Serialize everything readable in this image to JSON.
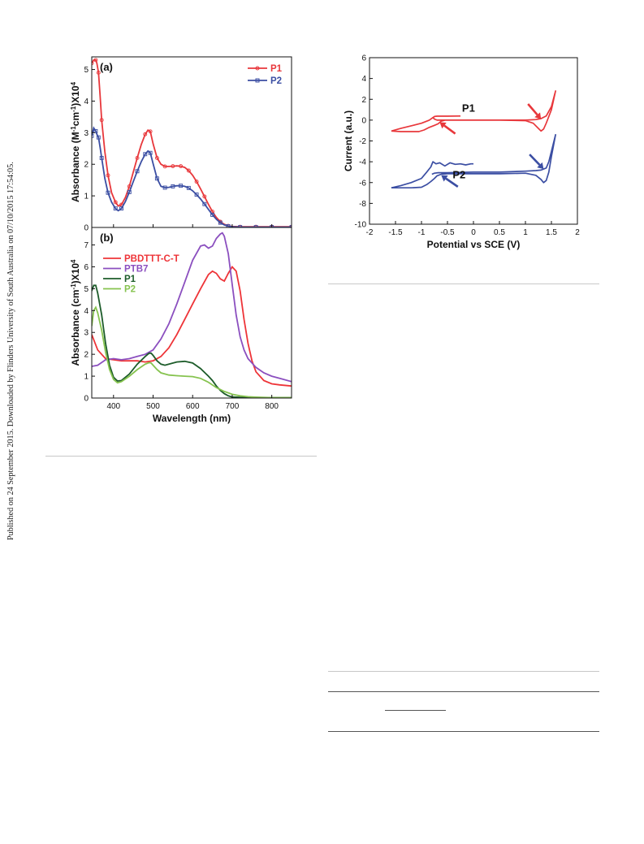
{
  "side_note": {
    "text": "Published on 24 September 2015. Downloaded by Flinders University of South Australia on 07/10/2015 17:54:05."
  },
  "colors": {
    "P1_red": "#e8373b",
    "P2_blue": "#3b4ea3",
    "PBDTTT_red": "#ee3438",
    "PTB7_purple": "#8b4fbf",
    "P1_green": "#1d5c2a",
    "P2_lightgreen": "#86c34f",
    "frame": "#111111",
    "rule": "#c8c8c8"
  },
  "chart_data": [
    {
      "id": "panel_a",
      "type": "line",
      "tag": "(a)",
      "xlabel": "",
      "ylabel": "Absorbance (M^-1cm^-1)X10^4",
      "xlim": [
        345,
        850
      ],
      "ylim": [
        0,
        5.4
      ],
      "xticks": [
        400,
        500,
        600,
        700,
        800
      ],
      "show_xtick_labels": false,
      "yticks": [
        0,
        1,
        2,
        3,
        4,
        5
      ],
      "grid": false,
      "legend_position": "top-right",
      "series": [
        {
          "name": "P1",
          "color_key": "P1_red",
          "marker": "circle",
          "x": [
            345,
            350,
            355,
            358,
            362,
            366,
            370,
            378,
            386,
            395,
            405,
            412,
            420,
            430,
            440,
            450,
            460,
            470,
            480,
            487,
            493,
            500,
            510,
            520,
            530,
            540,
            550,
            560,
            570,
            580,
            590,
            600,
            610,
            620,
            630,
            640,
            650,
            660,
            670,
            680,
            690,
            700,
            720,
            740,
            760,
            780,
            800,
            820,
            850
          ],
          "y": [
            5.2,
            5.3,
            5.3,
            5.2,
            4.9,
            4.2,
            3.4,
            2.4,
            1.65,
            1.1,
            0.8,
            0.68,
            0.72,
            0.95,
            1.3,
            1.75,
            2.2,
            2.62,
            2.95,
            3.08,
            3.04,
            2.65,
            2.2,
            2.0,
            1.93,
            1.93,
            1.94,
            1.95,
            1.94,
            1.9,
            1.8,
            1.65,
            1.45,
            1.22,
            0.98,
            0.73,
            0.5,
            0.32,
            0.18,
            0.1,
            0.05,
            0.03,
            0.02,
            0.02,
            0.02,
            0.02,
            0.02,
            0.02,
            0.02
          ]
        },
        {
          "name": "P2",
          "color_key": "P2_blue",
          "marker": "square",
          "x": [
            345,
            350,
            355,
            358,
            362,
            366,
            370,
            378,
            386,
            395,
            405,
            412,
            420,
            430,
            440,
            450,
            460,
            470,
            480,
            487,
            493,
            500,
            510,
            520,
            530,
            540,
            550,
            560,
            570,
            580,
            590,
            600,
            610,
            620,
            630,
            640,
            650,
            660,
            670,
            680,
            690,
            700,
            720,
            740,
            760,
            780,
            800,
            820,
            850
          ],
          "y": [
            2.9,
            3.15,
            3.05,
            2.95,
            2.85,
            2.55,
            2.2,
            1.55,
            1.1,
            0.8,
            0.6,
            0.53,
            0.6,
            0.82,
            1.12,
            1.45,
            1.78,
            2.08,
            2.32,
            2.42,
            2.36,
            2.02,
            1.55,
            1.3,
            1.26,
            1.27,
            1.3,
            1.32,
            1.32,
            1.3,
            1.25,
            1.16,
            1.04,
            0.9,
            0.74,
            0.57,
            0.4,
            0.26,
            0.15,
            0.08,
            0.04,
            0.02,
            0.01,
            0.01,
            0.01,
            0.01,
            0.01,
            0.01,
            0.01
          ]
        }
      ]
    },
    {
      "id": "panel_b",
      "type": "line",
      "tag": "(b)",
      "xlabel": "Wavelength (nm)",
      "ylabel": "Absorbance (cm^-1)X10^4",
      "xlim": [
        345,
        850
      ],
      "ylim": [
        0,
        7.8
      ],
      "xticks": [
        400,
        500,
        600,
        700,
        800
      ],
      "show_xtick_labels": true,
      "yticks": [
        0,
        1,
        2,
        3,
        4,
        5,
        6,
        7
      ],
      "grid": false,
      "legend_position": "top-left",
      "series": [
        {
          "name": "PBDTTT-C-T",
          "color_key": "PBDTTT_red",
          "x": [
            345,
            360,
            380,
            400,
            420,
            440,
            460,
            480,
            500,
            520,
            540,
            560,
            580,
            600,
            620,
            640,
            650,
            660,
            670,
            680,
            690,
            700,
            710,
            720,
            730,
            740,
            750,
            760,
            780,
            800,
            820,
            850
          ],
          "y": [
            2.9,
            2.2,
            1.8,
            1.75,
            1.7,
            1.7,
            1.7,
            1.65,
            1.7,
            1.9,
            2.3,
            2.9,
            3.6,
            4.3,
            5.0,
            5.65,
            5.8,
            5.7,
            5.45,
            5.35,
            5.7,
            6.0,
            5.8,
            4.9,
            3.6,
            2.5,
            1.7,
            1.2,
            0.8,
            0.65,
            0.6,
            0.55
          ]
        },
        {
          "name": "PTB7",
          "color_key": "PTB7_purple",
          "x": [
            345,
            360,
            380,
            400,
            420,
            440,
            460,
            480,
            500,
            520,
            540,
            560,
            580,
            600,
            620,
            630,
            640,
            650,
            660,
            670,
            675,
            680,
            690,
            700,
            710,
            720,
            730,
            740,
            760,
            780,
            800,
            820,
            850
          ],
          "y": [
            1.45,
            1.5,
            1.75,
            1.8,
            1.75,
            1.8,
            1.9,
            2.0,
            2.2,
            2.7,
            3.4,
            4.3,
            5.3,
            6.3,
            6.95,
            7.0,
            6.85,
            6.95,
            7.3,
            7.5,
            7.55,
            7.4,
            6.6,
            5.2,
            3.8,
            2.8,
            2.2,
            1.8,
            1.4,
            1.15,
            1.0,
            0.9,
            0.75
          ]
        },
        {
          "name": "P1",
          "color_key": "P1_green",
          "x": [
            345,
            350,
            355,
            360,
            370,
            380,
            390,
            400,
            410,
            420,
            440,
            460,
            480,
            490,
            495,
            500,
            510,
            520,
            530,
            540,
            560,
            580,
            600,
            620,
            640,
            650,
            660,
            670,
            680,
            690,
            700,
            720,
            740,
            760,
            800,
            850
          ],
          "y": [
            4.9,
            5.15,
            5.15,
            4.8,
            3.8,
            2.5,
            1.5,
            0.95,
            0.78,
            0.8,
            1.1,
            1.55,
            1.9,
            2.05,
            2.05,
            1.95,
            1.7,
            1.55,
            1.5,
            1.55,
            1.65,
            1.68,
            1.6,
            1.35,
            1.0,
            0.8,
            0.55,
            0.35,
            0.2,
            0.1,
            0.05,
            0.03,
            0.02,
            0.02,
            0.02,
            0.02
          ]
        },
        {
          "name": "P2",
          "color_key": "P2_lightgreen",
          "x": [
            345,
            350,
            355,
            360,
            370,
            380,
            390,
            400,
            410,
            420,
            440,
            460,
            480,
            490,
            495,
            500,
            510,
            520,
            540,
            560,
            580,
            600,
            620,
            640,
            660,
            680,
            700,
            720,
            740,
            760,
            800,
            850
          ],
          "y": [
            3.3,
            4.0,
            4.15,
            3.9,
            3.1,
            2.1,
            1.3,
            0.85,
            0.7,
            0.75,
            1.0,
            1.3,
            1.55,
            1.62,
            1.6,
            1.5,
            1.3,
            1.15,
            1.05,
            1.02,
            1.0,
            0.98,
            0.9,
            0.72,
            0.48,
            0.3,
            0.17,
            0.1,
            0.06,
            0.04,
            0.02,
            0.02
          ]
        }
      ]
    },
    {
      "id": "panel_cv",
      "type": "line",
      "tag": "",
      "xlabel": "Potential vs SCE (V)",
      "ylabel": "Current (a.u.)",
      "xlim": [
        -2,
        2
      ],
      "ylim": [
        -10,
        6
      ],
      "xticks": [
        -2,
        -1.5,
        -1,
        -0.5,
        0,
        0.5,
        1,
        1.5,
        2
      ],
      "xtick_labels": [
        "-2",
        "-1.5",
        "-1",
        "-0.5",
        "0",
        "0.5",
        "1",
        "1.5",
        "2"
      ],
      "yticks": [
        -10,
        -8,
        -6,
        -4,
        -2,
        0,
        2,
        4,
        6
      ],
      "ytick_labels": [
        "-10",
        "-8",
        "-6",
        "-4",
        "-2",
        "0",
        "2",
        "4",
        "6"
      ],
      "grid": false,
      "series": [
        {
          "name": "P1",
          "color_key": "P1_red",
          "x": [
            -1.58,
            -1.4,
            -1.2,
            -1.0,
            -0.85,
            -0.78,
            -0.75,
            -0.7,
            -0.5,
            -0.25
          ],
          "y": [
            -1.05,
            -0.8,
            -0.55,
            -0.3,
            0.0,
            0.25,
            0.35,
            0.38,
            0.38,
            0.4
          ]
        },
        {
          "name": "P1",
          "color_key": "P1_red",
          "x": [
            -1.58,
            -1.4,
            -1.2,
            -1.05,
            -0.95,
            -0.85,
            -0.75,
            -0.68,
            -0.62,
            -0.55,
            -0.3,
            0.0,
            0.5,
            1.0,
            1.15,
            1.25,
            1.3,
            1.35,
            1.4,
            1.5,
            1.58,
            1.5,
            1.4,
            1.3,
            1.2,
            1.0,
            0.5,
            0.0,
            -0.5,
            -0.7,
            -0.75,
            -0.78
          ],
          "y": [
            -1.05,
            -1.1,
            -1.1,
            -1.1,
            -0.95,
            -0.7,
            -0.5,
            -0.35,
            -0.1,
            0.0,
            0.0,
            0.0,
            0.0,
            -0.05,
            -0.3,
            -0.8,
            -1.05,
            -0.85,
            -0.3,
            1.0,
            2.8,
            1.3,
            0.4,
            0.15,
            0.05,
            0.0,
            0.0,
            0.0,
            0.0,
            0.0,
            0.1,
            0.25
          ]
        },
        {
          "name": "P2",
          "color_key": "P2_blue",
          "x": [
            -1.58,
            -1.4,
            -1.2,
            -1.0,
            -0.9,
            -0.82,
            -0.78,
            -0.72,
            -0.65,
            -0.55,
            -0.45,
            -0.35,
            -0.25,
            -0.15,
            -0.05,
            0.0
          ],
          "y": [
            -6.5,
            -6.3,
            -6.0,
            -5.6,
            -5.0,
            -4.5,
            -4.0,
            -4.2,
            -4.1,
            -4.4,
            -4.1,
            -4.25,
            -4.2,
            -4.3,
            -4.2,
            -4.2
          ]
        },
        {
          "name": "P2",
          "color_key": "P2_blue",
          "x": [
            -1.58,
            -1.4,
            -1.2,
            -1.0,
            -0.9,
            -0.82,
            -0.75,
            -0.7,
            -0.62,
            -0.5,
            -0.3,
            0.0,
            0.5,
            1.0,
            1.2,
            1.3,
            1.35,
            1.4,
            1.45,
            1.5,
            1.58,
            1.5,
            1.45,
            1.4,
            1.3,
            1.2,
            1.0,
            0.5,
            0.0,
            -0.5,
            -0.68,
            -0.75,
            -0.8
          ],
          "y": [
            -6.5,
            -6.5,
            -6.5,
            -6.45,
            -6.2,
            -5.9,
            -5.6,
            -5.35,
            -5.2,
            -5.15,
            -5.15,
            -5.15,
            -5.15,
            -5.1,
            -5.3,
            -5.7,
            -6.0,
            -5.8,
            -5.0,
            -3.5,
            -1.4,
            -3.0,
            -4.0,
            -4.6,
            -4.8,
            -4.85,
            -4.9,
            -5.0,
            -5.0,
            -5.05,
            -5.05,
            -5.1,
            -5.2
          ]
        }
      ],
      "labels": [
        {
          "text": "P1",
          "color_key": "P1_red",
          "x": -0.22,
          "y": 0.8
        },
        {
          "text": "P2",
          "color_key": "P2_blue",
          "x": -0.4,
          "y": -5.6
        }
      ],
      "arrows": [
        {
          "color_key": "P1_red",
          "from": [
            -0.35,
            -1.3
          ],
          "to": [
            -0.65,
            -0.2
          ]
        },
        {
          "color_key": "P1_red",
          "from": [
            1.05,
            1.55
          ],
          "to": [
            1.3,
            0.1
          ]
        },
        {
          "color_key": "P2_blue",
          "from": [
            -0.3,
            -6.4
          ],
          "to": [
            -0.62,
            -5.3
          ]
        },
        {
          "color_key": "P2_blue",
          "from": [
            1.08,
            -3.3
          ],
          "to": [
            1.35,
            -4.7
          ]
        }
      ]
    }
  ]
}
